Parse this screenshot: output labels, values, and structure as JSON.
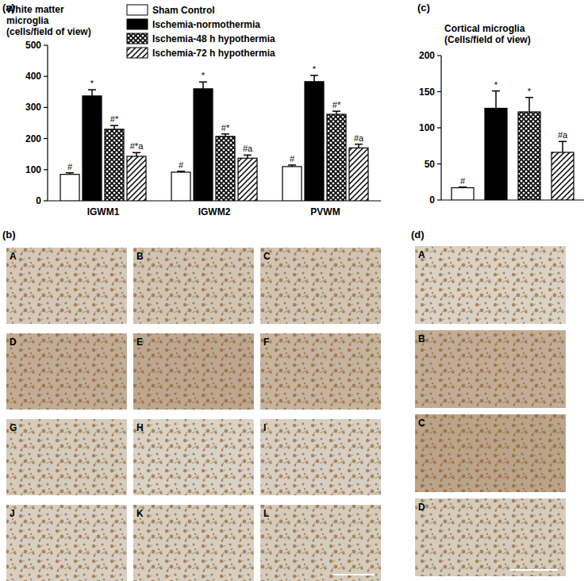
{
  "panel_labels": [
    "(a)",
    "(b)",
    "(c)",
    "(d)"
  ],
  "micrographs": {
    "b": [
      "A",
      "B",
      "C",
      "D",
      "E",
      "F",
      "G",
      "H",
      "I",
      "J",
      "K",
      "L"
    ],
    "d": [
      "A",
      "B",
      "C",
      "D"
    ]
  },
  "chart_data": [
    {
      "type": "bar",
      "title": "White matter\nmicroglia\n(cells/field of view)",
      "categories": [
        "IGWM1",
        "IGWM2",
        "PVWM"
      ],
      "series": [
        {
          "name": "Sham Control",
          "color": "#ffffff",
          "values": [
            85,
            92,
            110
          ],
          "errors": [
            5,
            3,
            5
          ],
          "annotations": [
            "#",
            "#",
            "#"
          ]
        },
        {
          "name": "Ischemia-normothermia",
          "color": "#000000",
          "values": [
            337,
            360,
            383
          ],
          "errors": [
            20,
            22,
            20
          ],
          "annotations": [
            "*",
            "*",
            "*"
          ]
        },
        {
          "name": "Ischemia-48 h hypothermia",
          "color": "#ffffff",
          "values": [
            230,
            207,
            278
          ],
          "errors": [
            12,
            8,
            10
          ],
          "annotations": [
            "#*",
            "#*",
            "#*"
          ]
        },
        {
          "name": "Ischemia-72 h hypothermia",
          "color": "#ffffff",
          "values": [
            143,
            137,
            170
          ],
          "errors": [
            12,
            10,
            12
          ],
          "annotations": [
            "#*a",
            "#a",
            "#a"
          ]
        }
      ],
      "ylim": [
        0,
        500
      ],
      "yticks": [
        0,
        100,
        200,
        300,
        400,
        500
      ],
      "legend": "top"
    },
    {
      "type": "bar",
      "title": "Cortical microglia\n(Cells/field of view)",
      "categories": [
        null
      ],
      "series": [
        {
          "color": "#ffffff",
          "values": [
            17
          ],
          "errors": [
            1
          ],
          "annotations": [
            "#"
          ]
        },
        {
          "color": "#000000",
          "values": [
            127
          ],
          "errors": [
            24
          ],
          "annotations": [
            "*"
          ]
        },
        {
          "color": "#ffffff",
          "values": [
            122
          ],
          "errors": [
            20
          ],
          "annotations": [
            "*"
          ]
        },
        {
          "color": "#ffffff",
          "values": [
            66
          ],
          "errors": [
            15
          ],
          "annotations": [
            "#a"
          ]
        }
      ],
      "ylim": [
        0,
        200
      ],
      "yticks": [
        0,
        50,
        100,
        150,
        200
      ]
    }
  ]
}
